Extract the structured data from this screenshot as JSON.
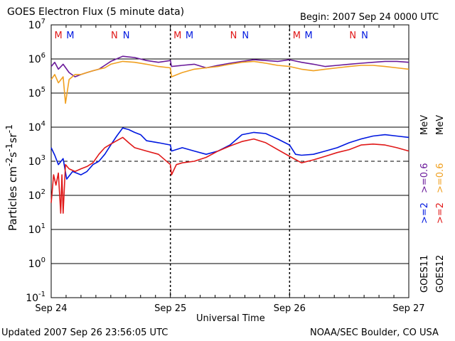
{
  "header": {
    "title": "GOES Electron Flux (5 minute data)",
    "begin": "Begin: 2007 Sep 24 0000 UTC"
  },
  "footer": {
    "updated": "Updated 2007 Sep 26 23:56:05 UTC",
    "credit": "NOAA/SEC Boulder, CO USA"
  },
  "right_labels": {
    "goes11": "GOES11",
    "goes12": "GOES12",
    "ch1": ">=2 >=0.6 MeV",
    "ch1_part_a": ">=2",
    "ch1_part_b": ">=0.6",
    "ch1_unit": "MeV",
    "ch2_part_a": ">=2",
    "ch2_part_b": ">=0.6",
    "ch2_unit": "MeV"
  },
  "colors": {
    "goes11_ge2": "#0018e0",
    "goes11_ge06": "#6a1a9a",
    "goes12_ge2": "#e01818",
    "goes12_ge06": "#f0a020"
  },
  "chart_data": {
    "type": "line",
    "title": "GOES Electron Flux (5 minute data)",
    "xlabel": "Universal Time",
    "ylabel": "Particles cm-2s-1sr-1",
    "y_scale": "log",
    "ylim": [
      0.1,
      10000000
    ],
    "y_ticks": [
      "10^7",
      "10^6",
      "10^5",
      "10^4",
      "10^3",
      "10^2",
      "10^1",
      "10^0",
      "10^-1"
    ],
    "x_ticks": [
      "Sep 24",
      "Sep 25",
      "Sep 26",
      "Sep 27"
    ],
    "xlim": [
      "2007-09-24",
      "2007-09-27"
    ],
    "threshold_line": 1000,
    "markers": [
      {
        "day": 0.06,
        "label": "M",
        "color": "#e01818"
      },
      {
        "day": 0.16,
        "label": "M",
        "color": "#0018e0"
      },
      {
        "day": 0.53,
        "label": "N",
        "color": "#e01818"
      },
      {
        "day": 0.63,
        "label": "N",
        "color": "#0018e0"
      },
      {
        "day": 1.06,
        "label": "M",
        "color": "#e01818"
      },
      {
        "day": 1.16,
        "label": "M",
        "color": "#0018e0"
      },
      {
        "day": 1.53,
        "label": "N",
        "color": "#e01818"
      },
      {
        "day": 1.63,
        "label": "N",
        "color": "#0018e0"
      },
      {
        "day": 2.06,
        "label": "M",
        "color": "#e01818"
      },
      {
        "day": 2.16,
        "label": "M",
        "color": "#0018e0"
      },
      {
        "day": 2.53,
        "label": "N",
        "color": "#e01818"
      },
      {
        "day": 2.63,
        "label": "N",
        "color": "#0018e0"
      }
    ],
    "series": [
      {
        "name": "GOES11 >=0.6 MeV",
        "color": "#6a1a9a",
        "x": [
          0.0,
          0.03,
          0.06,
          0.1,
          0.15,
          0.2,
          0.25,
          0.3,
          0.35,
          0.4,
          0.45,
          0.5,
          0.6,
          0.7,
          0.8,
          0.9,
          1.0,
          1.01,
          1.1,
          1.2,
          1.3,
          1.4,
          1.5,
          1.6,
          1.7,
          1.8,
          1.9,
          2.0,
          2.1,
          2.2,
          2.3,
          2.4,
          2.5,
          2.6,
          2.7,
          2.8,
          2.9,
          3.0
        ],
        "values": [
          600000,
          800000,
          500000,
          700000,
          400000,
          300000,
          350000,
          400000,
          450000,
          500000,
          650000,
          850000,
          1200000,
          1100000,
          900000,
          800000,
          900000,
          600000,
          650000,
          700000,
          550000,
          650000,
          750000,
          850000,
          950000,
          900000,
          850000,
          950000,
          800000,
          700000,
          600000,
          650000,
          700000,
          750000,
          800000,
          850000,
          850000,
          800000
        ]
      },
      {
        "name": "GOES12 >=0.6 MeV",
        "color": "#f0a020",
        "x": [
          0.0,
          0.03,
          0.06,
          0.1,
          0.12,
          0.15,
          0.2,
          0.25,
          0.3,
          0.35,
          0.4,
          0.45,
          0.5,
          0.6,
          0.7,
          0.8,
          0.9,
          1.0,
          1.01,
          1.1,
          1.2,
          1.3,
          1.4,
          1.5,
          1.6,
          1.7,
          1.8,
          1.9,
          2.0,
          2.1,
          2.2,
          2.3,
          2.4,
          2.5,
          2.6,
          2.7,
          2.8,
          2.9,
          3.0
        ],
        "values": [
          250000,
          350000,
          200000,
          300000,
          50000,
          250000,
          350000,
          350000,
          400000,
          450000,
          500000,
          550000,
          700000,
          850000,
          800000,
          700000,
          600000,
          550000,
          300000,
          400000,
          500000,
          550000,
          600000,
          700000,
          800000,
          850000,
          750000,
          650000,
          600000,
          500000,
          450000,
          500000,
          550000,
          600000,
          650000,
          650000,
          600000,
          550000,
          500000
        ]
      },
      {
        "name": "GOES11 >=2 MeV",
        "color": "#0018e0",
        "x": [
          0.0,
          0.03,
          0.06,
          0.1,
          0.13,
          0.18,
          0.25,
          0.3,
          0.35,
          0.4,
          0.45,
          0.5,
          0.55,
          0.6,
          0.65,
          0.7,
          0.75,
          0.8,
          0.9,
          1.0,
          1.01,
          1.1,
          1.2,
          1.3,
          1.4,
          1.5,
          1.6,
          1.7,
          1.8,
          1.9,
          2.0,
          2.05,
          2.1,
          2.2,
          2.3,
          2.4,
          2.5,
          2.6,
          2.7,
          2.8,
          2.9,
          3.0
        ],
        "values": [
          2500,
          1500,
          800,
          1200,
          300,
          500,
          400,
          500,
          800,
          1000,
          1600,
          3000,
          5500,
          9500,
          8500,
          7000,
          6000,
          4000,
          3500,
          3000,
          2000,
          2500,
          2000,
          1600,
          2000,
          3000,
          6000,
          7000,
          6500,
          4500,
          3000,
          1600,
          1500,
          1600,
          2000,
          2500,
          3500,
          4500,
          5500,
          6000,
          5500,
          5000
        ]
      },
      {
        "name": "GOES12 >=2 MeV",
        "color": "#e01818",
        "x": [
          0.0,
          0.02,
          0.04,
          0.06,
          0.08,
          0.09,
          0.1,
          0.12,
          0.15,
          0.2,
          0.25,
          0.3,
          0.35,
          0.4,
          0.45,
          0.5,
          0.55,
          0.6,
          0.65,
          0.7,
          0.8,
          0.9,
          1.0,
          1.01,
          1.05,
          1.1,
          1.2,
          1.3,
          1.4,
          1.5,
          1.6,
          1.7,
          1.8,
          1.9,
          2.0,
          2.1,
          2.2,
          2.3,
          2.4,
          2.5,
          2.6,
          2.7,
          2.8,
          2.9,
          3.0
        ],
        "values": [
          60,
          400,
          200,
          450,
          30,
          400,
          30,
          800,
          600,
          500,
          600,
          700,
          900,
          1600,
          2500,
          3200,
          4000,
          5000,
          3500,
          2500,
          2000,
          1600,
          800,
          400,
          800,
          900,
          1000,
          1300,
          2000,
          2800,
          3800,
          4500,
          3500,
          2200,
          1400,
          900,
          1100,
          1400,
          1800,
          2200,
          3000,
          3200,
          3000,
          2500,
          2000
        ]
      }
    ]
  }
}
